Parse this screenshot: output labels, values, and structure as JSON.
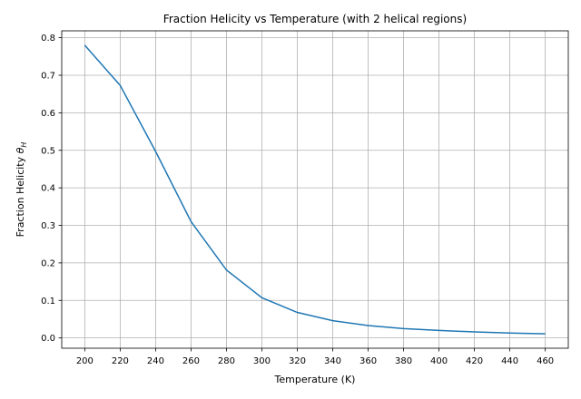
{
  "chart_data": {
    "type": "line",
    "title": "Fraction Helicity vs Temperature (with 2 helical regions)",
    "xlabel": "Temperature (K)",
    "ylabel_prefix": "Fraction Helicity ",
    "ylabel_symbol": "θ",
    "ylabel_subscript": "H",
    "x": [
      200,
      220,
      240,
      260,
      280,
      300,
      320,
      340,
      360,
      380,
      400,
      420,
      440,
      460
    ],
    "series": [
      {
        "values": [
          0.78,
          0.673,
          0.497,
          0.31,
          0.181,
          0.107,
          0.068,
          0.046,
          0.033,
          0.025,
          0.02,
          0.016,
          0.013,
          0.011
        ],
        "color": "#1f77b4"
      }
    ],
    "xticks": [
      200,
      220,
      240,
      260,
      280,
      300,
      320,
      340,
      360,
      380,
      400,
      420,
      440,
      460
    ],
    "yticks": [
      0.0,
      0.1,
      0.2,
      0.3,
      0.4,
      0.5,
      0.6,
      0.7,
      0.8
    ],
    "xlim": [
      187,
      473
    ],
    "ylim": [
      -0.0274,
      0.8184
    ],
    "grid": true,
    "grid_color": "#b0b0b0"
  }
}
